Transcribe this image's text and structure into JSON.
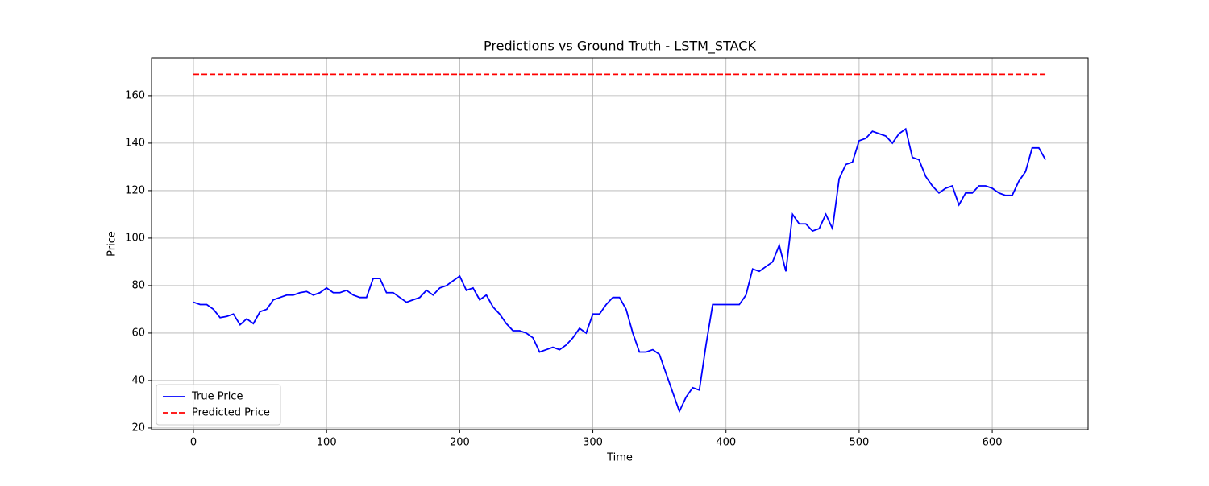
{
  "chart_data": {
    "type": "line",
    "title": "Predictions vs Ground Truth - LSTM_STACK",
    "x_label": "Time",
    "y_label": "Price",
    "x": [
      0,
      5,
      10,
      15,
      20,
      25,
      30,
      35,
      40,
      45,
      50,
      55,
      60,
      65,
      70,
      75,
      80,
      85,
      90,
      95,
      100,
      105,
      110,
      115,
      120,
      125,
      130,
      135,
      140,
      145,
      150,
      155,
      160,
      165,
      170,
      175,
      180,
      185,
      190,
      195,
      200,
      205,
      210,
      215,
      220,
      225,
      230,
      235,
      240,
      245,
      250,
      255,
      260,
      265,
      270,
      275,
      280,
      285,
      290,
      295,
      300,
      305,
      310,
      315,
      320,
      325,
      330,
      335,
      340,
      345,
      350,
      355,
      360,
      365,
      370,
      375,
      380,
      385,
      390,
      395,
      400,
      405,
      410,
      415,
      420,
      425,
      430,
      435,
      440,
      445,
      450,
      455,
      460,
      465,
      470,
      475,
      480,
      485,
      490,
      495,
      500,
      505,
      510,
      515,
      520,
      525,
      530,
      535,
      540,
      545,
      550,
      555,
      560,
      565,
      570,
      575,
      580,
      585,
      590,
      595,
      600,
      605,
      610,
      615,
      620,
      625,
      630,
      635,
      640
    ],
    "series": [
      {
        "name": "True Price",
        "color": "#0000ff",
        "linestyle": "solid",
        "values": [
          73,
          72,
          72,
          70,
          66.5,
          67,
          68,
          63.5,
          66,
          64,
          69,
          70,
          74,
          75,
          76,
          76,
          77,
          77.5,
          76,
          77,
          79,
          77,
          77,
          78,
          76,
          75,
          75,
          83,
          83,
          77,
          77,
          75,
          73,
          74,
          75,
          78,
          76,
          79,
          80,
          82,
          84,
          78,
          79,
          74,
          76,
          71,
          68,
          64,
          61,
          61,
          60,
          58,
          52,
          53,
          54,
          53,
          55,
          58,
          62,
          60,
          68,
          68,
          72,
          75,
          75,
          70,
          60,
          52,
          52,
          53,
          51,
          43,
          35,
          27,
          33,
          37,
          36,
          55,
          72,
          72,
          72,
          72,
          72,
          76,
          87,
          86,
          88,
          90,
          97,
          86,
          110,
          106,
          106,
          103,
          104,
          110,
          104,
          125,
          131,
          132,
          141,
          142,
          145,
          144,
          143,
          140,
          144,
          146,
          134,
          133,
          126,
          122,
          119,
          121,
          122,
          114,
          119,
          119,
          122,
          122,
          121,
          119,
          118,
          118,
          124,
          128,
          138,
          138,
          133
        ]
      },
      {
        "name": "Predicted Price",
        "color": "#ff0000",
        "linestyle": "dashed",
        "values": [
          169,
          169,
          169,
          169,
          169,
          169,
          169,
          169,
          169,
          169,
          169,
          169,
          169,
          169,
          169,
          169,
          169,
          169,
          169,
          169,
          169,
          169,
          169,
          169,
          169,
          169,
          169,
          169,
          169,
          169,
          169,
          169,
          169,
          169,
          169,
          169,
          169,
          169,
          169,
          169,
          169,
          169,
          169,
          169,
          169,
          169,
          169,
          169,
          169,
          169,
          169,
          169,
          169,
          169,
          169,
          169,
          169,
          169,
          169,
          169,
          169,
          169,
          169,
          169,
          169,
          169,
          169,
          169,
          169,
          169,
          169,
          169,
          169,
          169,
          169,
          169,
          169,
          169,
          169,
          169,
          169,
          169,
          169,
          169,
          169,
          169,
          169,
          169,
          169,
          169,
          169,
          169,
          169,
          169,
          169,
          169,
          169,
          169,
          169,
          169,
          169,
          169,
          169,
          169,
          169,
          169,
          169,
          169,
          169,
          169,
          169,
          169,
          169,
          169,
          169,
          169,
          169,
          169,
          169,
          169,
          169,
          169,
          169,
          169,
          169,
          169,
          169,
          169,
          169
        ]
      }
    ],
    "xlim": [
      -31.5,
      672
    ],
    "ylim": [
      19.3,
      175.9
    ],
    "xticks": [
      0,
      100,
      200,
      300,
      400,
      500,
      600
    ],
    "yticks": [
      20,
      40,
      60,
      80,
      100,
      120,
      140,
      160
    ],
    "grid": true,
    "legend": "lower left"
  }
}
